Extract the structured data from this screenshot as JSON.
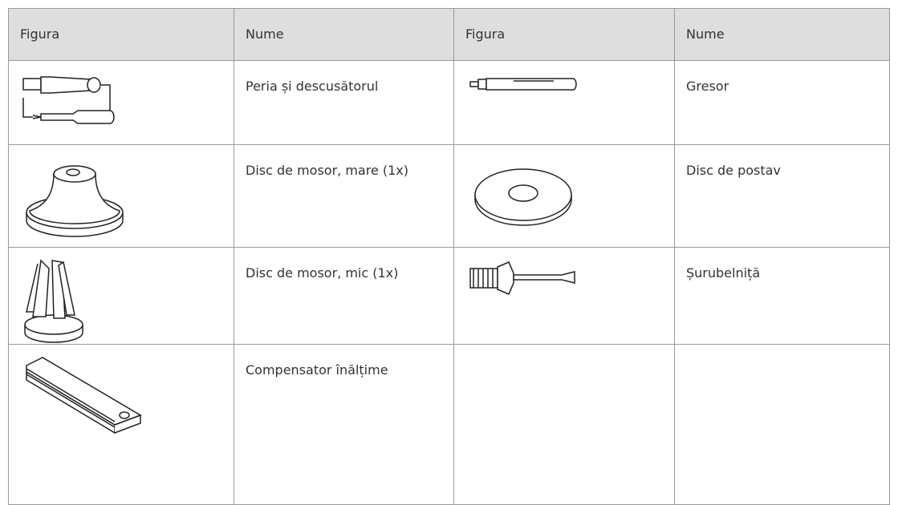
{
  "table": {
    "header": [
      "Figura",
      "Nume",
      "Figura",
      "Nume"
    ],
    "rows": [
      [
        "Peria și descusătorul",
        "Gresor"
      ],
      [
        "Disc de mosor, mare (1x)",
        "Disc de postav"
      ],
      [
        "Disc de mosor, mic (1x)",
        "Șurubelniță"
      ],
      [
        "Compensator înălțime"
      ]
    ]
  }
}
